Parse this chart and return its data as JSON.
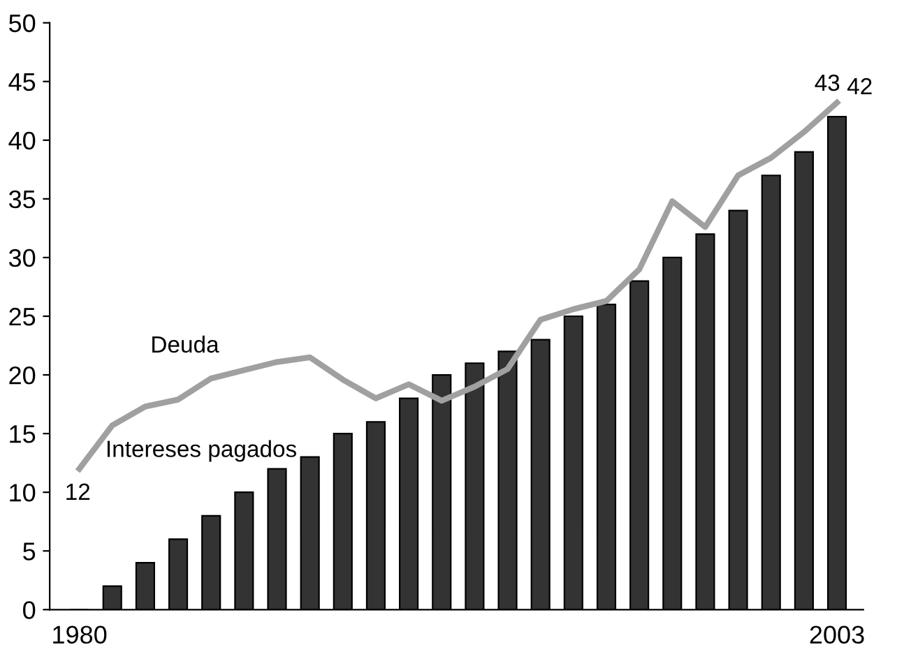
{
  "chart_data": {
    "type": "bar",
    "categories": [
      "1980",
      null,
      null,
      null,
      null,
      null,
      null,
      null,
      null,
      null,
      null,
      null,
      null,
      null,
      null,
      null,
      null,
      null,
      null,
      null,
      null,
      null,
      null,
      "2003"
    ],
    "series": [
      {
        "name": "Intereses pagados",
        "color": "#333333",
        "values": [
          0,
          2,
          4,
          6,
          8,
          10,
          12,
          13,
          15,
          16,
          18,
          20,
          21,
          22,
          23,
          25,
          26,
          28,
          30,
          32,
          34,
          37,
          39,
          42
        ],
        "value_labels": [
          null,
          null,
          null,
          null,
          null,
          null,
          null,
          null,
          null,
          null,
          null,
          null,
          null,
          null,
          null,
          null,
          null,
          null,
          null,
          null,
          null,
          null,
          null,
          "42"
        ]
      },
      {
        "name": "Deuda",
        "type": "line",
        "color": "#a0a0a0",
        "values": [
          12,
          15.7,
          17.3,
          17.9,
          19.7,
          20.4,
          21.1,
          21.5,
          19.6,
          18,
          19.2,
          17.8,
          19,
          20.5,
          24.7,
          25.6,
          26.3,
          29,
          34.8,
          32.6,
          37,
          38.5,
          40.7,
          43.2
        ],
        "value_labels": [
          "12",
          null,
          null,
          null,
          null,
          null,
          null,
          null,
          null,
          null,
          null,
          null,
          null,
          null,
          null,
          null,
          null,
          null,
          null,
          null,
          null,
          null,
          null,
          "43"
        ]
      }
    ],
    "ylim": [
      0,
      50
    ],
    "yticks": [
      0,
      5,
      10,
      15,
      20,
      25,
      30,
      35,
      40,
      45,
      50
    ],
    "grid": false,
    "legend": false,
    "marker": "none",
    "line_style": "solid"
  }
}
